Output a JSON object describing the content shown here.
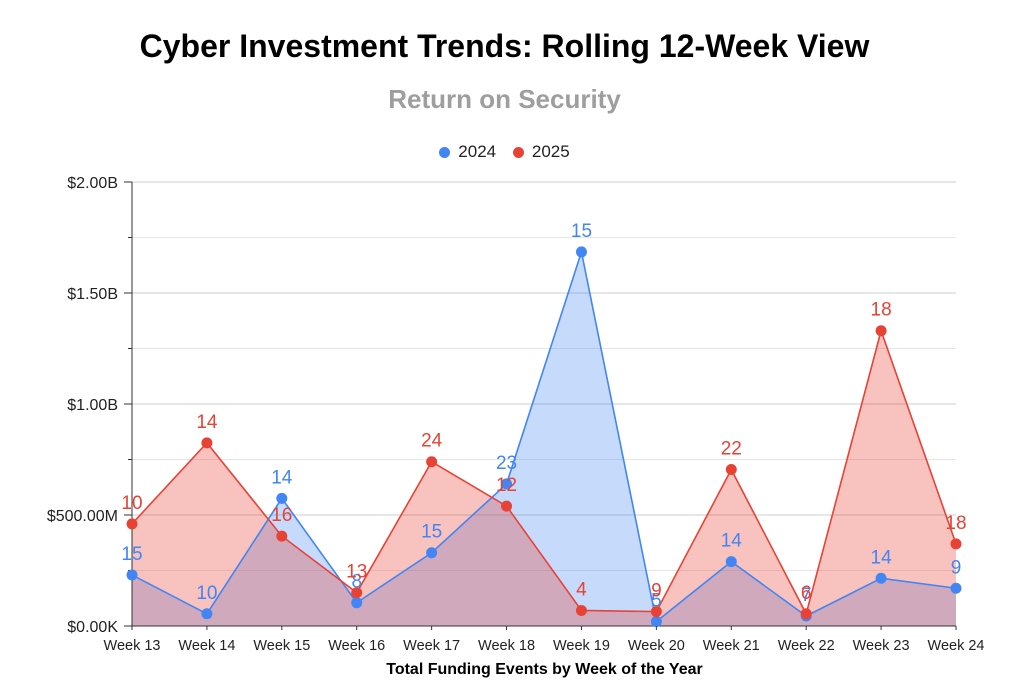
{
  "chart_data": {
    "type": "area",
    "title": "Cyber Investment Trends: Rolling 12-Week View",
    "subtitle": "Return on Security",
    "xlabel": "Total Funding Events by Week of the Year",
    "ylabel": "",
    "categories": [
      "Week 13",
      "Week 14",
      "Week 15",
      "Week 16",
      "Week 17",
      "Week 18",
      "Week 19",
      "Week 20",
      "Week 21",
      "Week 22",
      "Week 23",
      "Week 24"
    ],
    "y_ticks": [
      "$0.00K",
      "$500.00M",
      "$1.00B",
      "$1.50B",
      "$2.00B"
    ],
    "ylim": [
      0,
      2000000000
    ],
    "grid": true,
    "legend_position": "top",
    "series": [
      {
        "name": "2024",
        "color": "#4285f4",
        "values": [
          230000000,
          55000000,
          575000000,
          105000000,
          330000000,
          640000000,
          1685000000,
          20000000,
          290000000,
          45000000,
          215000000,
          170000000
        ],
        "labels": [
          "15",
          "10",
          "14",
          "8",
          "15",
          "23",
          "15",
          "5",
          "14",
          "7",
          "14",
          "9"
        ]
      },
      {
        "name": "2025",
        "color": "#e84235",
        "values": [
          460000000,
          825000000,
          405000000,
          150000000,
          740000000,
          540000000,
          70000000,
          65000000,
          705000000,
          55000000,
          1330000000,
          370000000
        ],
        "labels": [
          "10",
          "14",
          "16",
          "13",
          "24",
          "12",
          "4",
          "9",
          "22",
          "6",
          "18",
          "18"
        ]
      }
    ]
  }
}
